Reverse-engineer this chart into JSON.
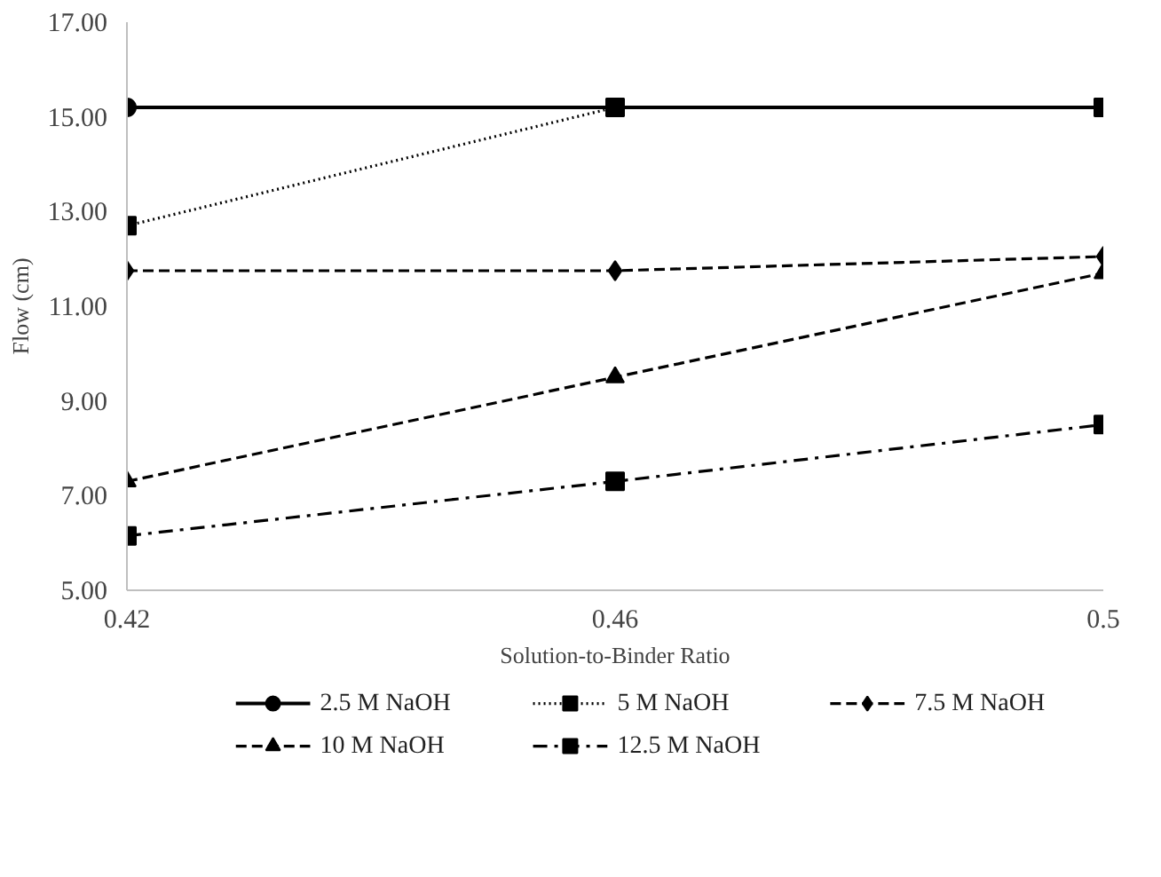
{
  "chart_data": {
    "type": "line",
    "xlabel": "Solution-to-Binder Ratio",
    "ylabel": "Flow (cm)",
    "x": [
      0.42,
      0.46,
      0.5
    ],
    "xlim": [
      0.42,
      0.5
    ],
    "xticks": [
      0.42,
      0.46,
      0.5
    ],
    "ylim": [
      5,
      17
    ],
    "yticks": [
      {
        "value": 5,
        "label": "5.00"
      },
      {
        "value": 7,
        "label": "7.00"
      },
      {
        "value": 9,
        "label": "9.00"
      },
      {
        "value": 11,
        "label": "11.00"
      },
      {
        "value": 13,
        "label": "13.00"
      },
      {
        "value": 15,
        "label": "15.00"
      },
      {
        "value": 17,
        "label": "17.00"
      }
    ],
    "grid": false,
    "legend": "bottom",
    "series": [
      {
        "name": "2.5 M NaOH",
        "color": "#000000",
        "values": [
          15.2,
          15.2,
          15.2
        ],
        "marker": "circle",
        "line_style": "solid"
      },
      {
        "name": "5 M NaOH",
        "color": "#000000",
        "values": [
          12.7,
          15.2,
          15.2
        ],
        "marker": "square",
        "line_style": "dotted"
      },
      {
        "name": "7.5 M NaOH",
        "color": "#000000",
        "values": [
          11.75,
          11.75,
          12.05
        ],
        "marker": "diamond",
        "line_style": "dashed"
      },
      {
        "name": "10 M NaOH",
        "color": "#000000",
        "values": [
          7.3,
          9.5,
          11.7
        ],
        "marker": "triangle",
        "line_style": "dashed"
      },
      {
        "name": "12.5 M NaOH",
        "color": "#000000",
        "values": [
          6.15,
          7.3,
          8.5
        ],
        "marker": "square",
        "line_style": "dashdot"
      }
    ]
  }
}
